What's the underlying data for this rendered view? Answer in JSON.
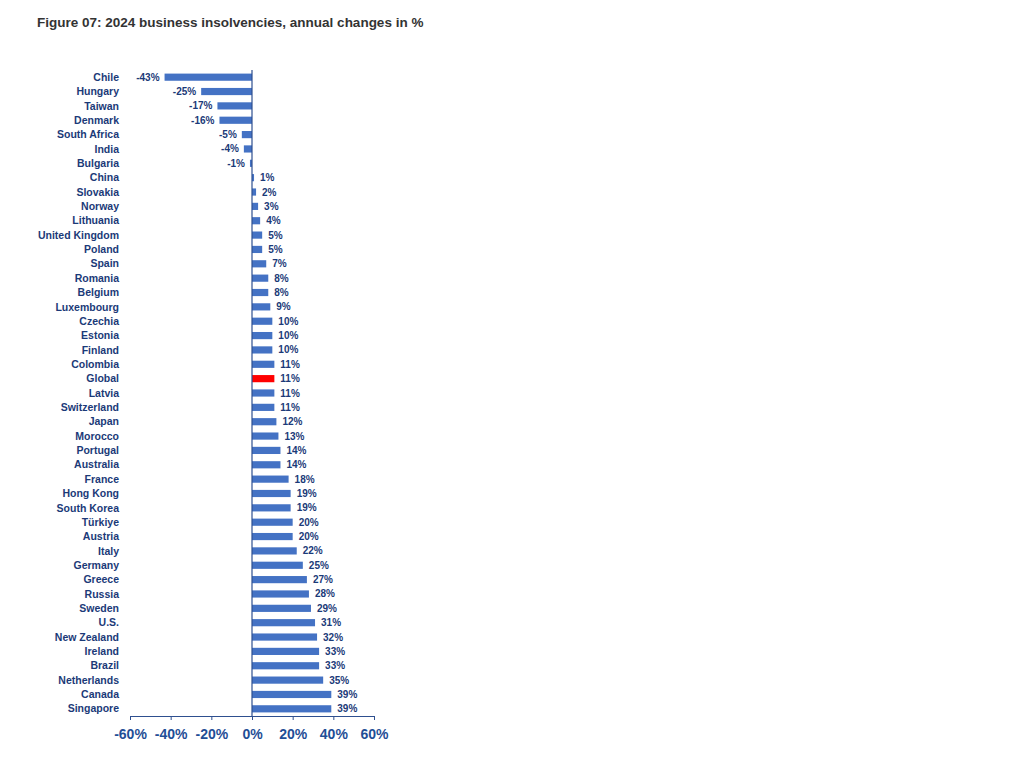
{
  "chart_data": {
    "type": "bar",
    "orientation": "horizontal",
    "title": "Figure 07: 2024 business insolvencies, annual changes in %",
    "categories": [
      "Chile",
      "Hungary",
      "Taiwan",
      "Denmark",
      "South Africa",
      "India",
      "Bulgaria",
      "China",
      "Slovakia",
      "Norway",
      "Lithuania",
      "United Kingdom",
      "Poland",
      "Spain",
      "Romania",
      "Belgium",
      "Luxembourg",
      "Czechia",
      "Estonia",
      "Finland",
      "Colombia",
      "Global",
      "Latvia",
      "Switzerland",
      "Japan",
      "Morocco",
      "Portugal",
      "Australia",
      "France",
      "Hong Kong",
      "South Korea",
      "Türkiye",
      "Austria",
      "Italy",
      "Germany",
      "Greece",
      "Russia",
      "Sweden",
      "U.S.",
      "New Zealand",
      "Ireland",
      "Brazil",
      "Netherlands",
      "Canada",
      "Singapore"
    ],
    "values": [
      -43,
      -25,
      -17,
      -16,
      -5,
      -4,
      -1,
      1,
      2,
      3,
      4,
      5,
      5,
      7,
      8,
      8,
      9,
      10,
      10,
      10,
      11,
      11,
      11,
      11,
      12,
      13,
      14,
      14,
      18,
      19,
      19,
      20,
      20,
      22,
      25,
      27,
      28,
      29,
      31,
      32,
      33,
      33,
      35,
      39,
      39
    ],
    "value_labels": [
      "-43%",
      "-25%",
      "-17%",
      "-16%",
      "-5%",
      "-4%",
      "-1%",
      "1%",
      "2%",
      "3%",
      "4%",
      "5%",
      "5%",
      "7%",
      "8%",
      "8%",
      "9%",
      "10%",
      "10%",
      "10%",
      "11%",
      "11%",
      "11%",
      "11%",
      "12%",
      "13%",
      "14%",
      "14%",
      "18%",
      "19%",
      "19%",
      "20%",
      "20%",
      "22%",
      "25%",
      "27%",
      "28%",
      "29%",
      "31%",
      "32%",
      "33%",
      "33%",
      "35%",
      "39%",
      "39%"
    ],
    "colors": [
      "#4472c4",
      "#4472c4",
      "#4472c4",
      "#4472c4",
      "#4472c4",
      "#4472c4",
      "#4472c4",
      "#4472c4",
      "#4472c4",
      "#4472c4",
      "#4472c4",
      "#4472c4",
      "#4472c4",
      "#4472c4",
      "#4472c4",
      "#4472c4",
      "#4472c4",
      "#4472c4",
      "#4472c4",
      "#4472c4",
      "#4472c4",
      "#ff0000",
      "#4472c4",
      "#4472c4",
      "#4472c4",
      "#4472c4",
      "#4472c4",
      "#4472c4",
      "#4472c4",
      "#4472c4",
      "#4472c4",
      "#4472c4",
      "#4472c4",
      "#4472c4",
      "#4472c4",
      "#4472c4",
      "#4472c4",
      "#4472c4",
      "#4472c4",
      "#4472c4",
      "#4472c4",
      "#4472c4",
      "#4472c4",
      "#4472c4",
      "#4472c4"
    ],
    "xlim": [
      -60,
      60
    ],
    "xticks": [
      {
        "value": -60,
        "label": "-60%"
      },
      {
        "value": -40,
        "label": "-40%"
      },
      {
        "value": -20,
        "label": "-20%"
      },
      {
        "value": 0,
        "label": "0%"
      },
      {
        "value": 20,
        "label": "20%"
      },
      {
        "value": 40,
        "label": "40%"
      },
      {
        "value": 60,
        "label": "60%"
      }
    ],
    "grid": false,
    "data_labels": true
  }
}
